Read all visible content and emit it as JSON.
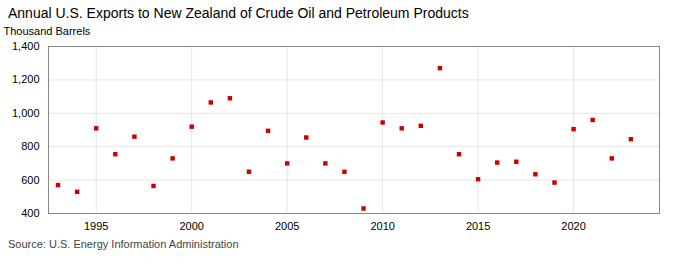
{
  "chart_data": {
    "type": "scatter",
    "title": "Annual U.S. Exports to New Zealand of Crude Oil and Petroleum Products",
    "ylabel": "Thousand Barrels",
    "caption": "Source: U.S. Energy Information Administration",
    "x": [
      1993,
      1994,
      1995,
      1996,
      1997,
      1998,
      1999,
      2000,
      2001,
      2002,
      2003,
      2004,
      2005,
      2006,
      2007,
      2008,
      2009,
      2010,
      2011,
      2012,
      2013,
      2014,
      2015,
      2016,
      2017,
      2018,
      2019,
      2020,
      2021,
      2022,
      2023
    ],
    "values": [
      570,
      530,
      910,
      755,
      860,
      565,
      730,
      920,
      1065,
      1090,
      650,
      895,
      700,
      855,
      700,
      650,
      430,
      945,
      910,
      925,
      1270,
      755,
      605,
      705,
      710,
      635,
      585,
      905,
      960,
      730,
      845
    ],
    "color": "#cc0000",
    "marker": "square",
    "xlim": [
      1992.5,
      2024.5
    ],
    "xticks": [
      1995,
      2000,
      2005,
      2010,
      2015,
      2020
    ],
    "ylim": [
      400,
      1400
    ],
    "yticks": [
      400,
      600,
      800,
      {
        "value": 1000,
        "label": "1,000"
      },
      {
        "value": 1200,
        "label": "1,200"
      },
      {
        "value": 1400,
        "label": "1,400"
      }
    ],
    "grid": true
  }
}
